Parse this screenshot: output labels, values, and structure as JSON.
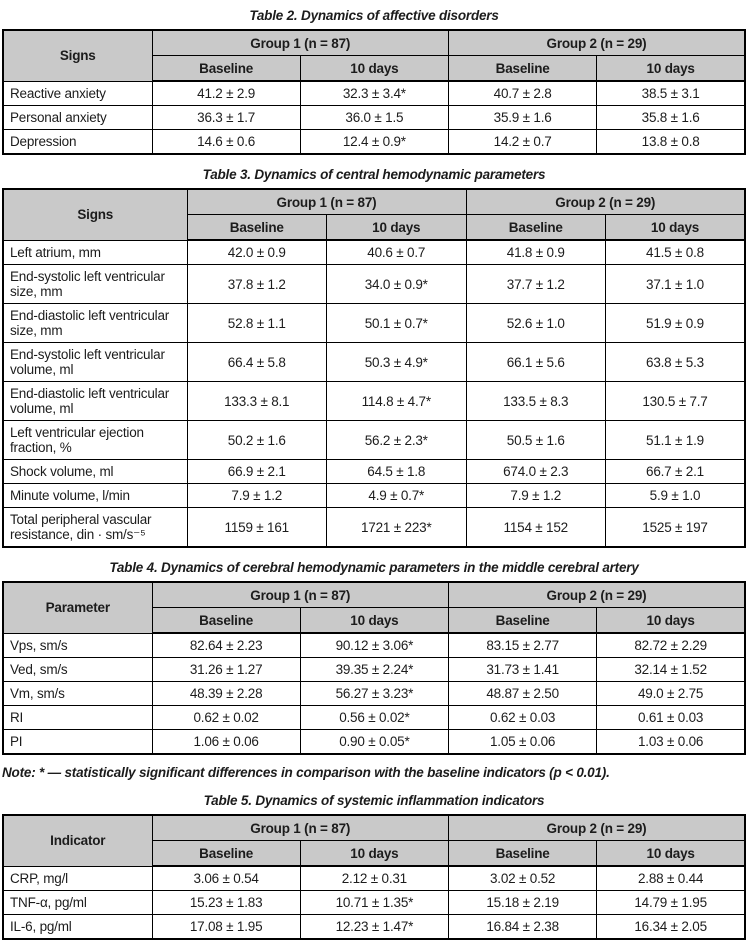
{
  "colors": {
    "header_bg": "#c9c9c9",
    "border": "#000000",
    "text": "#1c1c1c",
    "page_bg": "#ffffff"
  },
  "note": "Note: * — statistically significant differences in comparison with the baseline indicators (p < 0.01).",
  "tables": [
    {
      "title": "Table 2. Dynamics of affective disorders",
      "label_header": "Signs",
      "group_headers": [
        "Group 1 (n = 87)",
        "Group 2 (n = 29)"
      ],
      "sub_headers": [
        "Baseline",
        "10 days",
        "Baseline",
        "10 days"
      ],
      "rows": [
        {
          "label": "Reactive anxiety",
          "values": [
            "41.2 ± 2.9",
            "32.3 ± 3.4*",
            "40.7 ± 2.8",
            "38.5 ± 3.1"
          ]
        },
        {
          "label": "Personal anxiety",
          "values": [
            "36.3 ± 1.7",
            "36.0 ± 1.5",
            "35.9 ± 1.6",
            "35.8 ± 1.6"
          ]
        },
        {
          "label": "Depression",
          "values": [
            "14.6 ± 0.6",
            "12.4 ± 0.9*",
            "14.2 ± 0.7",
            "13.8 ± 0.8"
          ]
        }
      ]
    },
    {
      "title": "Table 3. Dynamics of central hemodynamic parameters",
      "label_header": "Signs",
      "group_headers": [
        "Group 1 (n = 87)",
        "Group 2 (n = 29)"
      ],
      "sub_headers": [
        "Baseline",
        "10 days",
        "Baseline",
        "10 days"
      ],
      "rows": [
        {
          "label": "Left atrium, mm",
          "values": [
            "42.0 ± 0.9",
            "40.6 ± 0.7",
            "41.8 ± 0.9",
            "41.5 ± 0.8"
          ]
        },
        {
          "label": "End-systolic left ventricular size, mm",
          "values": [
            "37.8 ± 1.2",
            "34.0 ± 0.9*",
            "37.7 ± 1.2",
            "37.1 ± 1.0"
          ]
        },
        {
          "label": "End-diastolic left ventricular size, mm",
          "values": [
            "52.8 ± 1.1",
            "50.1 ± 0.7*",
            "52.6 ± 1.0",
            "51.9 ± 0.9"
          ]
        },
        {
          "label": "End-systolic left ventricular volume, ml",
          "values": [
            "66.4 ± 5.8",
            "50.3 ± 4.9*",
            "66.1 ± 5.6",
            "63.8 ± 5.3"
          ]
        },
        {
          "label": "End-diastolic left ventricular volume, ml",
          "values": [
            "133.3 ± 8.1",
            "114.8 ± 4.7*",
            "133.5 ± 8.3",
            "130.5 ± 7.7"
          ]
        },
        {
          "label": "Left ventricular ejection fraction, %",
          "values": [
            "50.2 ± 1.6",
            "56.2 ± 2.3*",
            "50.5 ± 1.6",
            "51.1 ± 1.9"
          ]
        },
        {
          "label": "Shock volume, ml",
          "values": [
            "66.9 ± 2.1",
            "64.5 ± 1.8",
            "674.0 ± 2.3",
            "66.7 ± 2.1"
          ]
        },
        {
          "label": "Minute volume, l/min",
          "values": [
            "7.9 ± 1.2",
            "4.9 ± 0.7*",
            "7.9 ± 1.2",
            "5.9 ± 1.0"
          ]
        },
        {
          "label": "Total peripheral vascular resistance, din · sm/s⁻⁵",
          "values": [
            "1159 ± 161",
            "1721 ± 223*",
            "1154 ± 152",
            "1525 ± 197"
          ]
        }
      ]
    },
    {
      "title": "Table 4. Dynamics of cerebral hemodynamic parameters in the middle cerebral artery",
      "label_header": "Parameter",
      "group_headers": [
        "Group 1 (n = 87)",
        "Group 2 (n = 29)"
      ],
      "sub_headers": [
        "Baseline",
        "10 days",
        "Baseline",
        "10 days"
      ],
      "rows": [
        {
          "label": "Vps, sm/s",
          "values": [
            "82.64 ± 2.23",
            "90.12 ± 3.06*",
            "83.15 ± 2.77",
            "82.72 ± 2.29"
          ]
        },
        {
          "label": "Ved, sm/s",
          "values": [
            "31.26 ± 1.27",
            "39.35 ± 2.24*",
            "31.73 ± 1.41",
            "32.14 ± 1.52"
          ]
        },
        {
          "label": "Vm, sm/s",
          "values": [
            "48.39 ± 2.28",
            "56.27 ± 3.23*",
            "48.87 ± 2.50",
            "49.0 ± 2.75"
          ]
        },
        {
          "label": "RI",
          "values": [
            "0.62 ± 0.02",
            "0.56 ± 0.02*",
            "0.62 ± 0.03",
            "0.61 ± 0.03"
          ]
        },
        {
          "label": "PI",
          "values": [
            "1.06 ± 0.06",
            "0.90 ± 0.05*",
            "1.05 ± 0.06",
            "1.03 ± 0.06"
          ]
        }
      ]
    },
    {
      "title": "Table 5. Dynamics of systemic inflammation indicators",
      "label_header": "Indicator",
      "group_headers": [
        "Group 1 (n = 87)",
        "Group 2 (n = 29)"
      ],
      "sub_headers": [
        "Baseline",
        "10 days",
        "Baseline",
        "10 days"
      ],
      "rows": [
        {
          "label": "CRP, mg/l",
          "values": [
            "3.06 ± 0.54",
            "2.12 ± 0.31",
            "3.02 ± 0.52",
            "2.88 ± 0.44"
          ]
        },
        {
          "label": "TNF-α, pg/ml",
          "values": [
            "15.23 ± 1.83",
            "10.71 ± 1.35*",
            "15.18 ± 2.19",
            "14.79 ± 1.95"
          ]
        },
        {
          "label": "IL-6, pg/ml",
          "values": [
            "17.08 ± 1.95",
            "12.23 ± 1.47*",
            "16.84 ± 2.38",
            "16.34 ± 2.05"
          ]
        }
      ]
    }
  ]
}
